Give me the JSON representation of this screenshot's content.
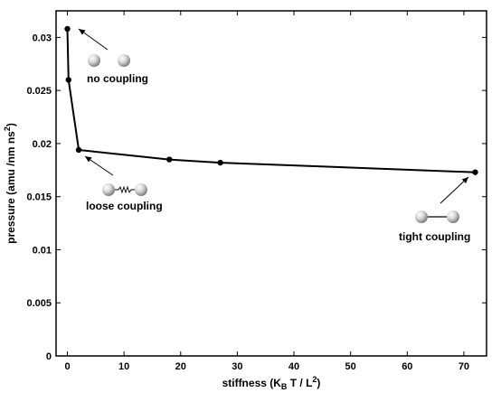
{
  "chart_data": {
    "type": "line",
    "title": "",
    "xlabel": {
      "prefix": "stiffness (K",
      "sub": "B",
      "mid": " T / L",
      "sup": "2",
      "suffix": ")"
    },
    "ylabel": {
      "prefix": "pressure (amu /nm ns",
      "sup": "2",
      "suffix": ")"
    },
    "xlim": [
      -2,
      74
    ],
    "ylim": [
      0,
      0.0325
    ],
    "xticks": [
      0,
      10,
      20,
      30,
      40,
      50,
      60,
      70
    ],
    "xtick_labels": [
      "0",
      "10",
      "20",
      "30",
      "40",
      "50",
      "60",
      "70"
    ],
    "yticks": [
      0,
      0.005,
      0.01,
      0.015,
      0.02,
      0.025,
      0.03
    ],
    "ytick_labels": [
      "0",
      "0.005",
      "0.01",
      "0.015",
      "0.02",
      "0.025",
      "0.03"
    ],
    "grid": false,
    "series": [
      {
        "x": [
          0,
          0.2,
          2,
          18,
          27,
          72
        ],
        "y": [
          0.0308,
          0.026,
          0.0194,
          0.0185,
          0.0182,
          0.0173
        ],
        "color": "#000000",
        "marker": "circle"
      }
    ],
    "annotations": [
      {
        "text": "no coupling",
        "connector": "none",
        "points_to": [
          0,
          0.0308
        ]
      },
      {
        "text": "loose coupling",
        "connector": "spring",
        "points_to": [
          2,
          0.0194
        ]
      },
      {
        "text": "tight coupling",
        "connector": "rod",
        "points_to": [
          72,
          0.0173
        ]
      }
    ]
  }
}
